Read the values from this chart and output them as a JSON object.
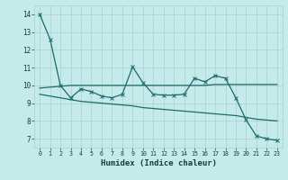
{
  "xlabel": "Humidex (Indice chaleur)",
  "ylabel": "",
  "bg_color": "#c5eaea",
  "grid_color": "#b0cccc",
  "line_color": "#1a6b6b",
  "xlim": [
    -0.5,
    23.5
  ],
  "ylim": [
    6.5,
    14.5
  ],
  "yticks": [
    7,
    8,
    9,
    10,
    11,
    12,
    13,
    14
  ],
  "xticks": [
    0,
    1,
    2,
    3,
    4,
    5,
    6,
    7,
    8,
    9,
    10,
    11,
    12,
    13,
    14,
    15,
    16,
    17,
    18,
    19,
    20,
    21,
    22,
    23
  ],
  "series1_x": [
    0,
    1,
    2,
    3,
    4,
    5,
    6,
    7,
    8,
    9,
    10,
    11,
    12,
    13,
    14,
    15,
    16,
    17,
    18,
    19,
    20,
    21,
    22,
    23
  ],
  "series1_y": [
    14.0,
    12.6,
    10.0,
    9.3,
    9.8,
    9.65,
    9.4,
    9.3,
    9.5,
    11.05,
    10.15,
    9.5,
    9.45,
    9.45,
    9.5,
    10.4,
    10.2,
    10.55,
    10.4,
    9.3,
    8.05,
    7.15,
    7.0,
    6.9
  ],
  "series2_x": [
    0,
    1,
    2,
    3,
    4,
    5,
    6,
    7,
    8,
    9,
    10,
    11,
    12,
    13,
    14,
    15,
    16,
    17,
    18,
    19,
    20,
    21,
    22,
    23
  ],
  "series2_y": [
    9.85,
    9.9,
    9.95,
    10.0,
    10.0,
    10.0,
    10.0,
    10.0,
    10.0,
    10.0,
    10.0,
    10.0,
    10.0,
    10.0,
    10.0,
    10.0,
    10.0,
    10.05,
    10.05,
    10.05,
    10.05,
    10.05,
    10.05,
    10.05
  ],
  "series3_x": [
    0,
    1,
    2,
    3,
    4,
    5,
    6,
    7,
    8,
    9,
    10,
    11,
    12,
    13,
    14,
    15,
    16,
    17,
    18,
    19,
    20,
    21,
    22,
    23
  ],
  "series3_y": [
    9.5,
    9.4,
    9.3,
    9.2,
    9.1,
    9.05,
    9.0,
    8.95,
    8.9,
    8.85,
    8.75,
    8.7,
    8.65,
    8.6,
    8.55,
    8.5,
    8.45,
    8.4,
    8.35,
    8.3,
    8.2,
    8.1,
    8.05,
    8.0
  ],
  "marker_size": 2.5,
  "line_width": 0.9
}
